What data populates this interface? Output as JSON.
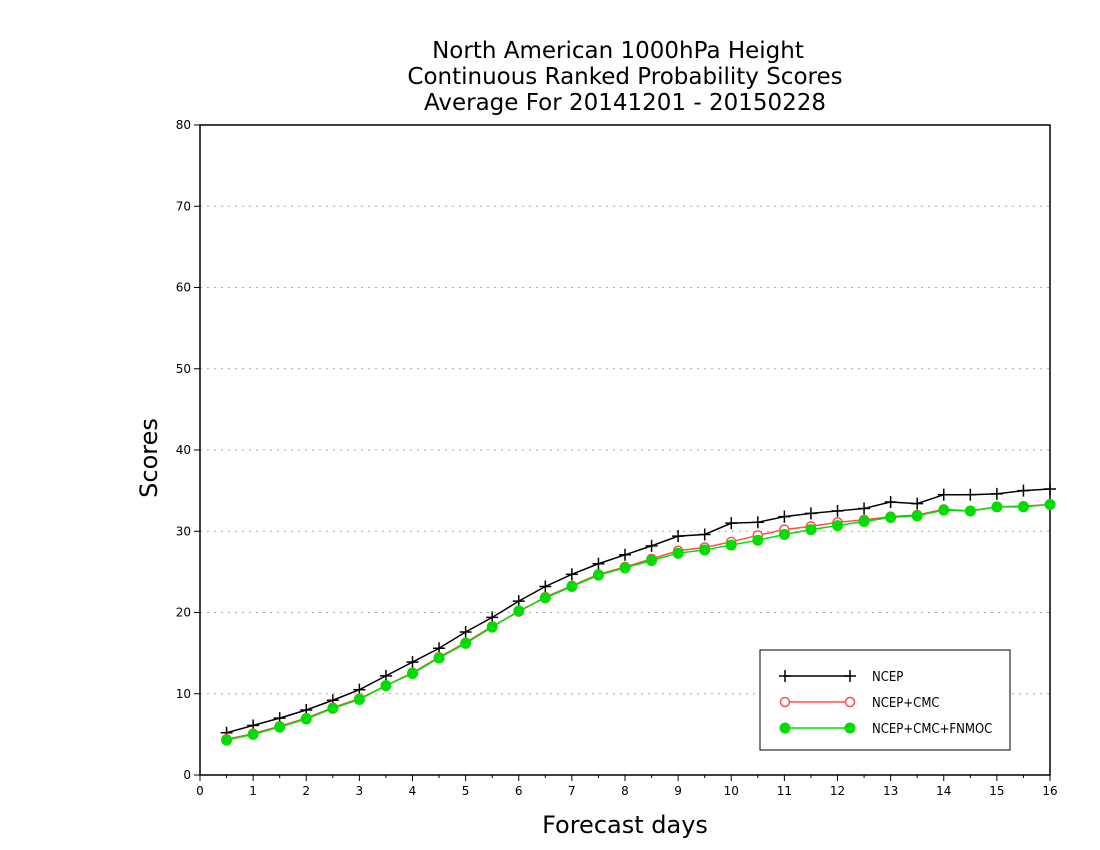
{
  "chart_data": {
    "type": "line",
    "title": [
      "North American 1000hPa Height",
      "Continuous Ranked Probability Scores",
      "Average For 20141201 - 20150228"
    ],
    "xlabel": "Forecast days",
    "ylabel": "Scores",
    "xlim": [
      0,
      16
    ],
    "ylim": [
      0,
      80
    ],
    "xticks": [
      "0",
      "1",
      "2",
      "3",
      "4",
      "5",
      "6",
      "7",
      "8",
      "9",
      "10",
      "11",
      "12",
      "13",
      "14",
      "15",
      "16"
    ],
    "yticks": [
      "0",
      "10",
      "20",
      "30",
      "40",
      "50",
      "60",
      "70",
      "80"
    ],
    "grid": "horizontal dotted",
    "legend_position": "bottom-right",
    "x": [
      0.5,
      1,
      1.5,
      2,
      2.5,
      3,
      3.5,
      4,
      4.5,
      5,
      5.5,
      6,
      6.5,
      7,
      7.5,
      8,
      8.5,
      9,
      9.5,
      10,
      10.5,
      11,
      11.5,
      12,
      12.5,
      13,
      13.5,
      14,
      14.5,
      15,
      15.5,
      16
    ],
    "series": [
      {
        "name": "NCEP",
        "color": "#000000",
        "marker": "plus",
        "values": [
          5.2,
          6.1,
          7.0,
          8.0,
          9.2,
          10.5,
          12.2,
          13.9,
          15.6,
          17.6,
          19.4,
          21.4,
          23.2,
          24.7,
          26.0,
          27.1,
          28.2,
          29.4,
          29.6,
          31.0,
          31.1,
          31.8,
          32.2,
          32.5,
          32.8,
          33.6,
          33.4,
          34.5,
          34.5,
          34.6,
          35.0,
          35.2
        ]
      },
      {
        "name": "NCEP+CMC",
        "color": "#ff4d4d",
        "marker": "open-circle",
        "values": [
          4.4,
          5.1,
          6.0,
          7.0,
          8.3,
          9.4,
          11.0,
          12.6,
          14.5,
          16.3,
          18.3,
          20.1,
          21.9,
          23.3,
          24.7,
          25.6,
          26.6,
          27.6,
          28.0,
          28.7,
          29.5,
          30.2,
          30.6,
          31.1,
          31.4,
          31.8,
          32.0,
          32.7,
          32.5,
          33.0,
          33.1,
          33.3
        ]
      },
      {
        "name": "NCEP+CMC+FNMOC",
        "color": "#00dd00",
        "marker": "filled-circle",
        "values": [
          4.3,
          5.0,
          5.9,
          6.9,
          8.2,
          9.3,
          11.0,
          12.5,
          14.4,
          16.2,
          18.2,
          20.2,
          21.8,
          23.2,
          24.6,
          25.5,
          26.4,
          27.3,
          27.7,
          28.3,
          28.9,
          29.6,
          30.2,
          30.7,
          31.2,
          31.7,
          31.9,
          32.6,
          32.5,
          33.0,
          33.0,
          33.3
        ]
      }
    ]
  }
}
